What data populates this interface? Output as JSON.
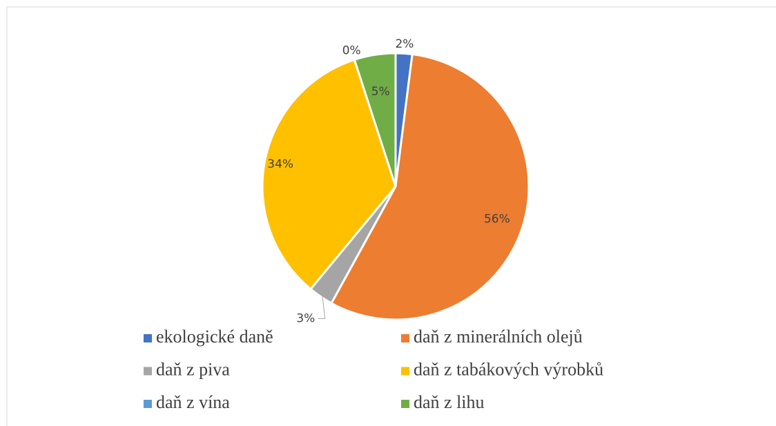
{
  "chart_data": {
    "type": "pie",
    "categories": [
      "ekologické daně",
      "daň z minerálních olejů",
      "daň z piva",
      "daň z tabákových výrobků",
      "daň z vína",
      "daň z lihu"
    ],
    "values": [
      2,
      56,
      3,
      34,
      0,
      5
    ],
    "value_labels": [
      "2%",
      "56%",
      "3%",
      "34%",
      "0%",
      "5%"
    ],
    "colors": [
      "#4472c4",
      "#ed7d31",
      "#a5a5a5",
      "#ffc000",
      "#5b9bd5",
      "#70ad47"
    ],
    "legend": "bottom"
  }
}
